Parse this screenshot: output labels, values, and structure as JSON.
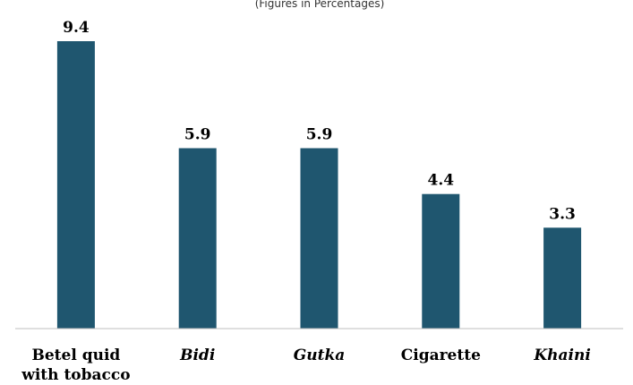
{
  "chart_data": {
    "type": "bar",
    "subtitle": "(Figures in Percentages)",
    "categories": [
      {
        "lines": [
          "Betel quid",
          "with tobacco"
        ],
        "italic": false
      },
      {
        "lines": [
          "Bidi"
        ],
        "italic": true
      },
      {
        "lines": [
          "Gutka"
        ],
        "italic": true
      },
      {
        "lines": [
          "Cigarette"
        ],
        "italic": false
      },
      {
        "lines": [
          "Khaini"
        ],
        "italic": true
      }
    ],
    "values": [
      9.4,
      5.9,
      5.9,
      4.4,
      3.3
    ],
    "value_labels": [
      "9.4",
      "5.9",
      "5.9",
      "4.4",
      "3.3"
    ],
    "ylim": [
      0,
      9.4
    ],
    "grid": false,
    "legend": "none",
    "colors": {
      "bar": "#1f566f",
      "axis": "#bfbfbf"
    }
  }
}
